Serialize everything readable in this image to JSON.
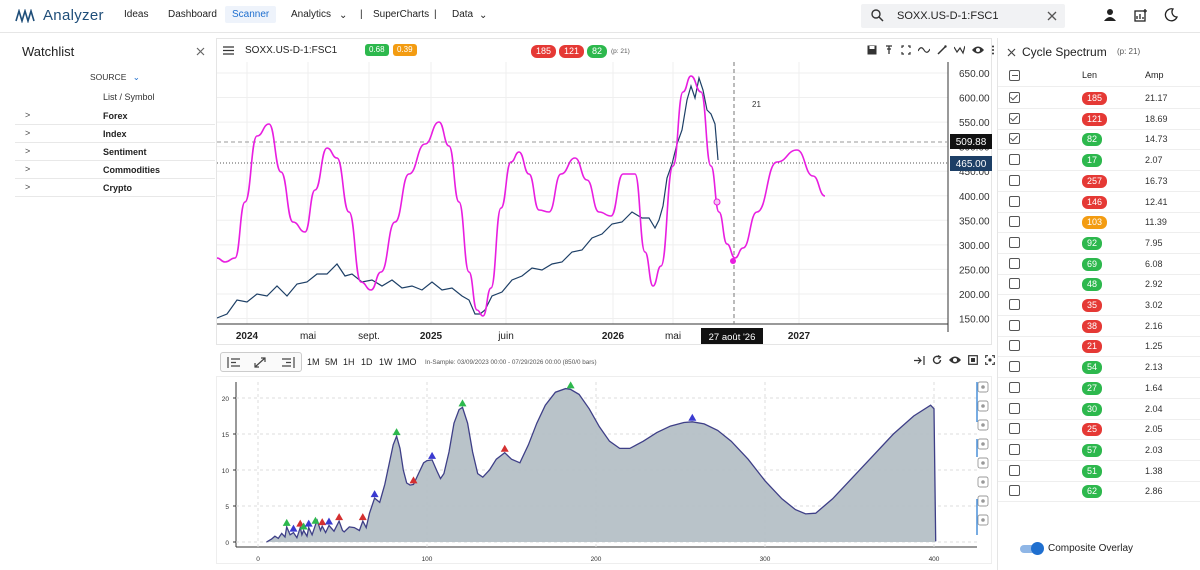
{
  "app": {
    "name": "Analyzer"
  },
  "nav": {
    "ideas": "Ideas",
    "dashboard": "Dashboard",
    "scanner": "Scanner",
    "analytics": "Analytics",
    "sep1": "|",
    "supercharts": "SuperCharts",
    "sep2": "|",
    "data": "Data"
  },
  "search": {
    "value": "SOXX.US-D-1:FSC1"
  },
  "watchlist": {
    "title": "Watchlist",
    "source_label": "SOURCE",
    "list_header": "List / Symbol",
    "items": [
      "Forex",
      "Index",
      "Sentiment",
      "Commodities",
      "Crypto"
    ]
  },
  "chart_header": {
    "symbol": "SOXX.US-D-1:FSC1",
    "badge_a": "0.68",
    "badge_b": "0.39",
    "cycles": [
      "185",
      "121",
      "82"
    ],
    "period": "(p: 21)"
  },
  "price_chart": {
    "y_ticks": [
      "650.00",
      "600.00",
      "550.00",
      "500.00",
      "450.00",
      "400.00",
      "350.00",
      "300.00",
      "250.00",
      "200.00",
      "150.00"
    ],
    "x_ticks": [
      "2024",
      "mai",
      "sept.",
      "2025",
      "juin",
      "2026",
      "mai",
      "2027"
    ],
    "crosshair_date": "27 août '26",
    "price_label_1": "509.88",
    "price_label_2": "465.00",
    "annotation": "21"
  },
  "toolbar": {
    "timeframes": [
      "1M",
      "5M",
      "1H",
      "1D",
      "1W",
      "1MO"
    ],
    "info": "In-Sample: 03/09/2023 00:00 - 07/29/2026 00:00 (850/0 bars)"
  },
  "spectrum": {
    "y_ticks": [
      "20",
      "15",
      "10",
      "5",
      "0"
    ],
    "x_ticks": [
      "0",
      "100",
      "200",
      "300",
      "400"
    ]
  },
  "cycle_spectrum": {
    "title": "Cycle Spectrum",
    "period": "(p: 21)",
    "col_len": "Len",
    "col_amp": "Amp",
    "rows": [
      {
        "len": "185",
        "amp": "21.17",
        "color": "#e53935",
        "checked": true
      },
      {
        "len": "121",
        "amp": "18.69",
        "color": "#e53935",
        "checked": true
      },
      {
        "len": "82",
        "amp": "14.73",
        "color": "#2db84d",
        "checked": true
      },
      {
        "len": "17",
        "amp": "2.07",
        "color": "#2db84d",
        "checked": false
      },
      {
        "len": "257",
        "amp": "16.73",
        "color": "#e53935",
        "checked": false
      },
      {
        "len": "146",
        "amp": "12.41",
        "color": "#e53935",
        "checked": false
      },
      {
        "len": "103",
        "amp": "11.39",
        "color": "#f39c12",
        "checked": false
      },
      {
        "len": "92",
        "amp": "7.95",
        "color": "#2db84d",
        "checked": false
      },
      {
        "len": "69",
        "amp": "6.08",
        "color": "#2db84d",
        "checked": false
      },
      {
        "len": "48",
        "amp": "2.92",
        "color": "#2db84d",
        "checked": false
      },
      {
        "len": "35",
        "amp": "3.02",
        "color": "#e53935",
        "checked": false
      },
      {
        "len": "38",
        "amp": "2.16",
        "color": "#e53935",
        "checked": false
      },
      {
        "len": "21",
        "amp": "1.25",
        "color": "#e53935",
        "checked": false
      },
      {
        "len": "54",
        "amp": "2.13",
        "color": "#2db84d",
        "checked": false
      },
      {
        "len": "27",
        "amp": "1.64",
        "color": "#2db84d",
        "checked": false
      },
      {
        "len": "30",
        "amp": "2.04",
        "color": "#2db84d",
        "checked": false
      },
      {
        "len": "25",
        "amp": "2.05",
        "color": "#e53935",
        "checked": false
      },
      {
        "len": "57",
        "amp": "2.03",
        "color": "#2db84d",
        "checked": false
      },
      {
        "len": "51",
        "amp": "1.38",
        "color": "#2db84d",
        "checked": false
      },
      {
        "len": "62",
        "amp": "2.86",
        "color": "#2db84d",
        "checked": false
      }
    ],
    "composite_label": "Composite Overlay"
  },
  "colors": {
    "accent": "#1f6fcf",
    "composite": "#e81ee0",
    "price": "#1d3f66",
    "green": "#2db84d",
    "red": "#e53935",
    "orange": "#f39c12"
  }
}
